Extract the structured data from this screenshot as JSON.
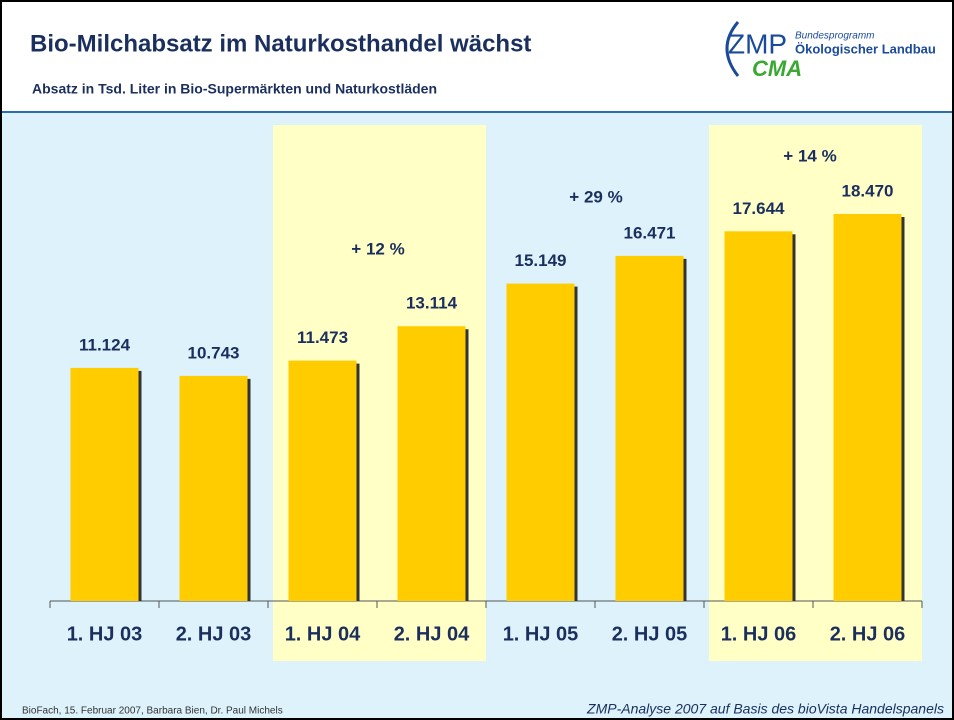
{
  "chart_data": {
    "type": "bar",
    "title": "Bio-Milchabsatz im Naturkosthandel wächst",
    "subtitle": "Absatz in Tsd. Liter in Bio-Supermärkten und Naturkostläden",
    "categories": [
      "1. HJ 03",
      "2. HJ 03",
      "1. HJ 04",
      "2. HJ 04",
      "1. HJ 05",
      "2. HJ 05",
      "1. HJ 06",
      "2. HJ 06"
    ],
    "values": [
      11124,
      10743,
      11473,
      13114,
      15149,
      16471,
      17644,
      18470
    ],
    "value_labels": [
      "11.124",
      "10.743",
      "11.473",
      "13.114",
      "15.149",
      "16.471",
      "17.644",
      "18.470"
    ],
    "color": "#ffcc00",
    "annotations": [
      "+ 12 %",
      "+ 29 %",
      "+ 14 %"
    ],
    "logo": {
      "zmp": "ZMP",
      "program": "Bundesprogramm",
      "name": "Ökologischer Landbau",
      "cma": "CMA"
    },
    "footer_left": "BioFach, 15. Februar 2007, Barbara Bien, Dr. Paul Michels",
    "footer_right": "ZMP-Analyse 2007 auf Basis des bioVista Handelspanels"
  }
}
